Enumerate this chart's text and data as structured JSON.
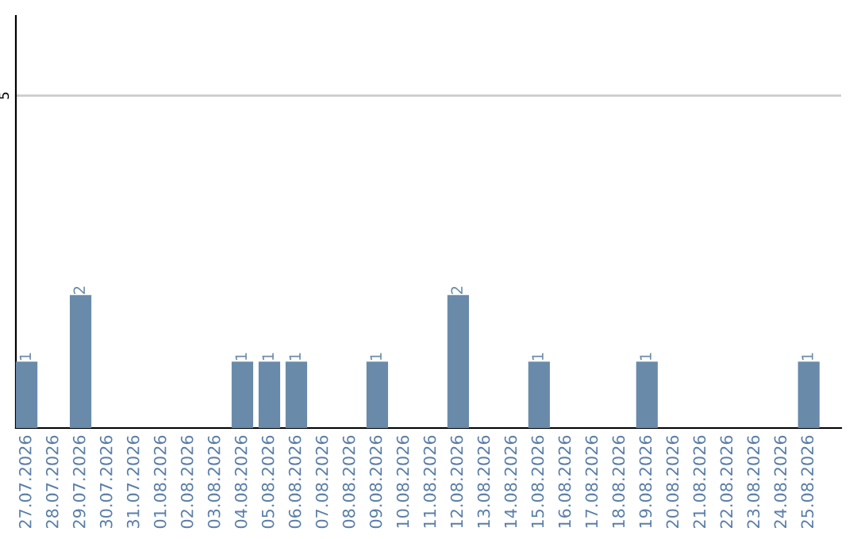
{
  "chart_data": {
    "type": "bar",
    "categories": [
      "27.07.2026",
      "28.07.2026",
      "29.07.2026",
      "30.07.2026",
      "31.07.2026",
      "01.08.2026",
      "02.08.2026",
      "03.08.2026",
      "04.08.2026",
      "05.08.2026",
      "06.08.2026",
      "07.08.2026",
      "08.08.2026",
      "09.08.2026",
      "10.08.2026",
      "11.08.2026",
      "12.08.2026",
      "13.08.2026",
      "14.08.2026",
      "15.08.2026",
      "16.08.2026",
      "17.08.2026",
      "18.08.2026",
      "19.08.2026",
      "20.08.2026",
      "21.08.2026",
      "22.08.2026",
      "23.08.2026",
      "24.08.2026",
      "25.08.2026"
    ],
    "values": [
      1,
      0,
      2,
      0,
      0,
      0,
      0,
      0,
      1,
      1,
      1,
      0,
      0,
      1,
      0,
      0,
      2,
      0,
      0,
      1,
      0,
      0,
      0,
      1,
      0,
      0,
      0,
      0,
      0,
      1
    ],
    "value_labels": [
      "1",
      null,
      "2",
      null,
      null,
      null,
      null,
      null,
      "1",
      "1",
      "1",
      null,
      null,
      "1",
      null,
      null,
      "2",
      null,
      null,
      "1",
      null,
      null,
      null,
      "1",
      null,
      null,
      null,
      null,
      null,
      "1"
    ],
    "color": "#6a8aaa",
    "ylim": [
      0,
      6.2
    ],
    "yticks": [
      5
    ],
    "grid": "y"
  }
}
